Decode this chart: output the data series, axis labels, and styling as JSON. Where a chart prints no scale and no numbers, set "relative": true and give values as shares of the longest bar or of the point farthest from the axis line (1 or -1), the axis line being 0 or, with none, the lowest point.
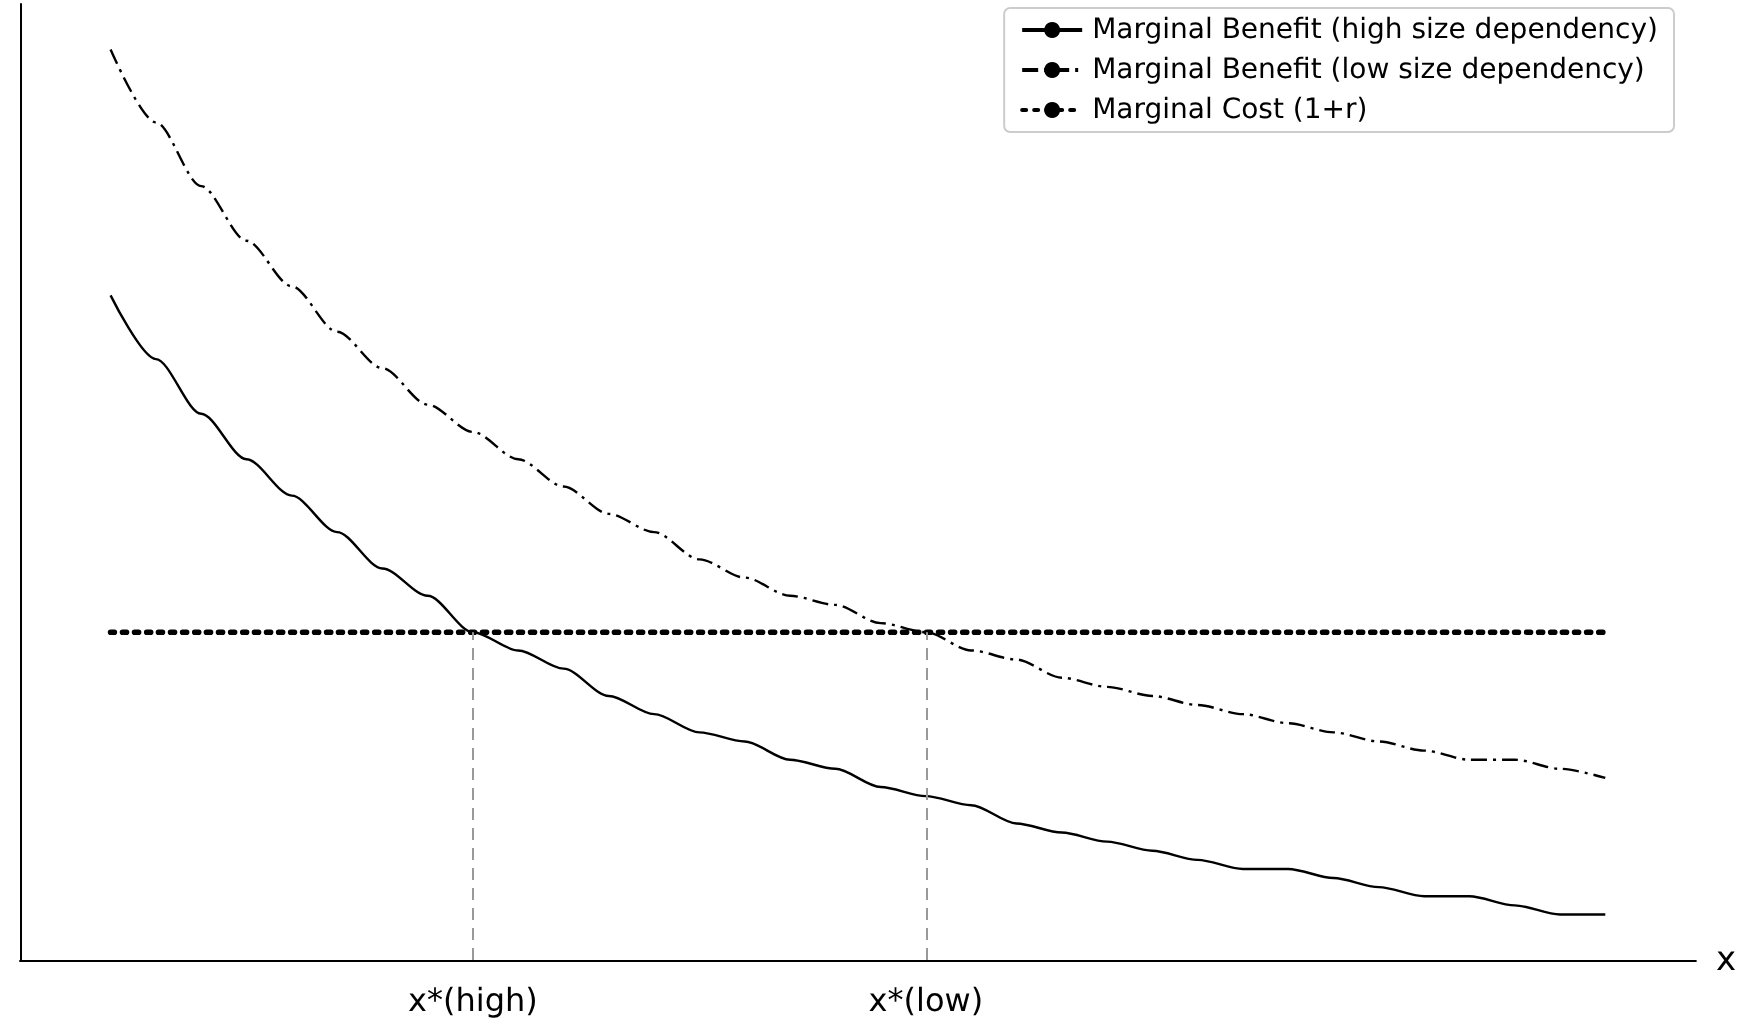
{
  "chart_data": {
    "type": "line",
    "relative": true,
    "xlabel": "x",
    "legend": "top right",
    "grid": false,
    "marker": "none",
    "categories": [
      null,
      null,
      null,
      null,
      null,
      null,
      null,
      null,
      null,
      null,
      "x*(high)",
      null,
      null,
      null,
      null,
      null,
      null,
      null,
      null,
      null,
      "x*(low)",
      null,
      null,
      null,
      null,
      null,
      null,
      null,
      null,
      null,
      null,
      null,
      null,
      null,
      null,
      null,
      null,
      null
    ],
    "series": [
      {
        "name": "Marginal Benefit (high size dependency)",
        "color": "#000000",
        "line_style": "solid",
        "values": [
          null,
          null,
          0.73,
          0.66,
          0.6,
          0.55,
          0.51,
          0.47,
          0.43,
          0.4,
          0.36,
          0.34,
          0.32,
          0.29,
          0.27,
          0.25,
          0.24,
          0.22,
          0.21,
          0.19,
          0.18,
          0.17,
          0.15,
          0.14,
          0.13,
          0.12,
          0.11,
          0.1,
          0.1,
          0.09,
          0.08,
          0.07,
          0.07,
          0.06,
          0.05,
          0.05,
          null,
          null
        ]
      },
      {
        "name": "Marginal Benefit (low size dependency)",
        "color": "#000000",
        "line_style": "dashdot",
        "values": [
          null,
          null,
          1.0,
          0.92,
          0.85,
          0.79,
          0.74,
          0.69,
          0.65,
          0.61,
          0.58,
          0.55,
          0.52,
          0.49,
          0.47,
          0.44,
          0.42,
          0.4,
          0.39,
          0.37,
          0.36,
          0.34,
          0.33,
          0.31,
          0.3,
          0.29,
          0.28,
          0.27,
          0.26,
          0.25,
          0.24,
          0.23,
          0.22,
          0.22,
          0.21,
          0.2,
          null,
          null
        ]
      },
      {
        "name": "Marginal Cost (1+r)",
        "color": "#000000",
        "line_style": "dotted",
        "values": [
          null,
          null,
          0.36,
          0.36,
          0.36,
          0.36,
          0.36,
          0.36,
          0.36,
          0.36,
          0.36,
          0.36,
          0.36,
          0.36,
          0.36,
          0.36,
          0.36,
          0.36,
          0.36,
          0.36,
          0.36,
          0.36,
          0.36,
          0.36,
          0.36,
          0.36,
          0.36,
          0.36,
          0.36,
          0.36,
          0.36,
          0.36,
          0.36,
          0.36,
          0.36,
          0.36,
          null,
          null
        ]
      }
    ],
    "ref_lines": [
      {
        "axis": "x",
        "value": "x*(high)",
        "color": "#999999",
        "line_style": "dashed"
      },
      {
        "axis": "x",
        "value": "x*(low)",
        "color": "#999999",
        "line_style": "dashed"
      }
    ]
  }
}
